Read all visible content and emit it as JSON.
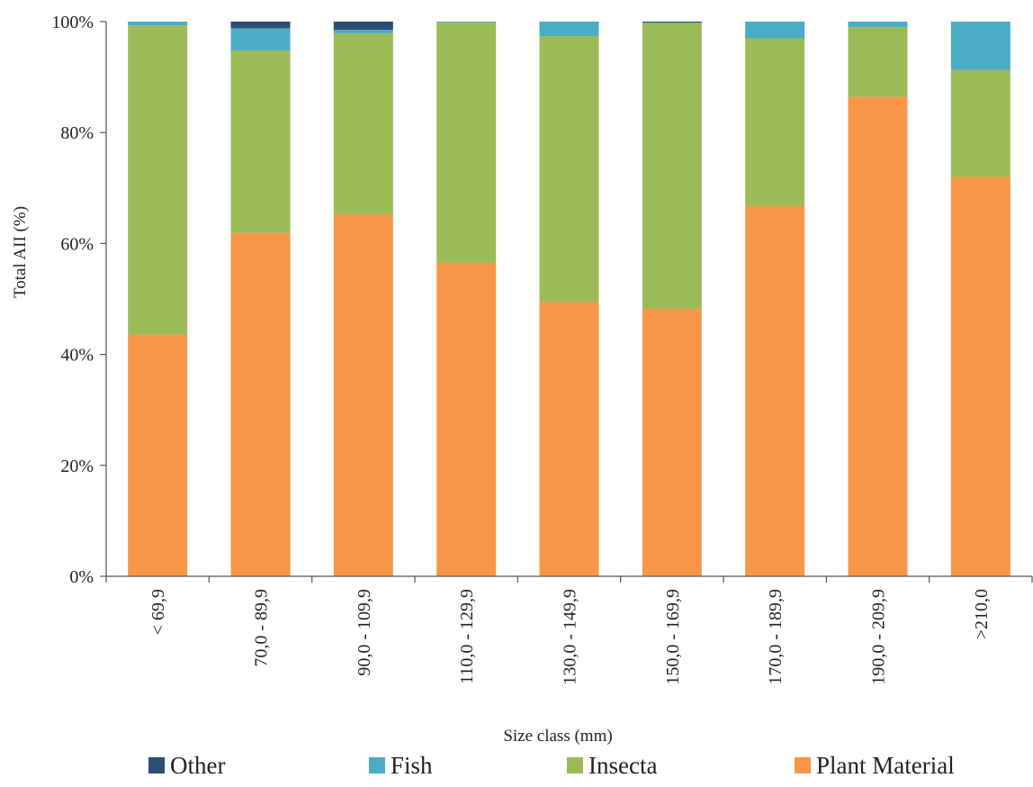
{
  "chart_data": {
    "type": "bar",
    "stacked": true,
    "percent": true,
    "title": "",
    "xlabel": "Size class (mm)",
    "ylabel": "Total AII (%)",
    "ylim": [
      0,
      100
    ],
    "yticks": [
      "0%",
      "20%",
      "40%",
      "60%",
      "80%",
      "100%"
    ],
    "categories": [
      "< 69,9",
      "70,0 - 89,9",
      "90,0 - 109,9",
      "110,0 - 129,9",
      "130,0 - 149,9",
      "150,0 - 169,9",
      "170,0 - 189,9",
      "190,0 - 209,9",
      ">210,0"
    ],
    "series": [
      {
        "name": "Plant Material",
        "color": "#f79646",
        "values": [
          43.6,
          61.9,
          65.3,
          56.5,
          49.5,
          48.2,
          66.8,
          86.4,
          72.0
        ]
      },
      {
        "name": "Insecta",
        "color": "#9bbb59",
        "values": [
          55.7,
          32.9,
          32.6,
          43.3,
          47.9,
          51.5,
          30.2,
          12.6,
          19.3
        ]
      },
      {
        "name": "Fish",
        "color": "#4bacc6",
        "values": [
          0.7,
          4.0,
          0.6,
          0.2,
          2.6,
          0.1,
          3.0,
          1.0,
          8.7
        ]
      },
      {
        "name": "Other",
        "color": "#2c4d75",
        "values": [
          0.0,
          1.2,
          1.5,
          0.0,
          0.0,
          0.2,
          0.0,
          0.0,
          0.0
        ]
      }
    ],
    "legend": {
      "placement": "bottom",
      "order": [
        "Other",
        "Fish",
        "Insecta",
        "Plant Material"
      ]
    },
    "grid": false
  }
}
